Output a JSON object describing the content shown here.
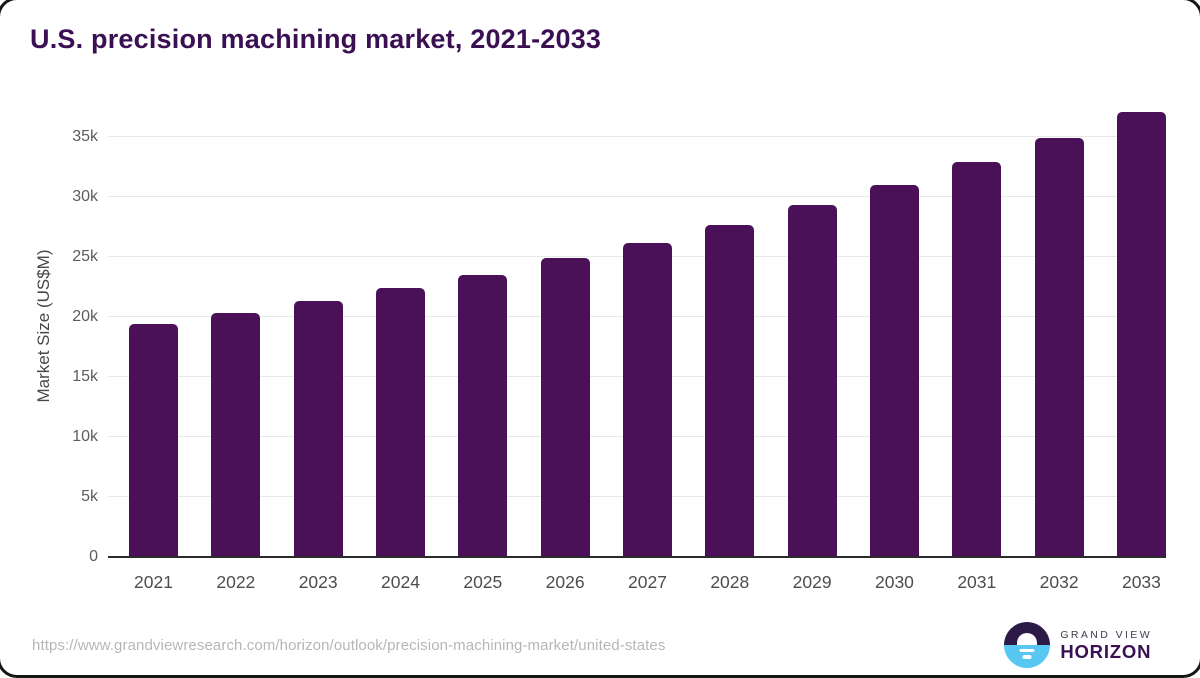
{
  "title": "U.S. precision machining market, 2021-2033",
  "chart_data": {
    "type": "bar",
    "title": "U.S. precision machining market, 2021-2033",
    "categories": [
      "2021",
      "2022",
      "2023",
      "2024",
      "2025",
      "2026",
      "2027",
      "2028",
      "2029",
      "2030",
      "2031",
      "2032",
      "2033"
    ],
    "values": [
      19400,
      20300,
      21300,
      22400,
      23500,
      24900,
      26200,
      27700,
      29350,
      31000,
      32950,
      34950,
      37100
    ],
    "xlabel": "",
    "ylabel": "Market Size (US$M)",
    "ylim": [
      0,
      38500
    ],
    "yticks": [
      {
        "value": 0,
        "label": "0"
      },
      {
        "value": 5000,
        "label": "5k"
      },
      {
        "value": 10000,
        "label": "10k"
      },
      {
        "value": 15000,
        "label": "15k"
      },
      {
        "value": 20000,
        "label": "20k"
      },
      {
        "value": 25000,
        "label": "25k"
      },
      {
        "value": 30000,
        "label": "30k"
      },
      {
        "value": 35000,
        "label": "35k"
      }
    ],
    "grid": true,
    "legend": false,
    "bar_color": "#4a1159"
  },
  "footer": {
    "source_url": "https://www.grandviewresearch.com/horizon/outlook/precision-machining-market/united-states",
    "logo": {
      "line1": "GRAND VIEW",
      "line2": "HORIZON"
    }
  },
  "colors": {
    "title": "#3b1053",
    "bar": "#4a1159",
    "gridline": "#e8e8e8",
    "axis_line": "#2b2b2b",
    "tick_text": "#5c5c5c",
    "logo_purple": "#2e1a47",
    "logo_blue": "#58c8f2"
  }
}
